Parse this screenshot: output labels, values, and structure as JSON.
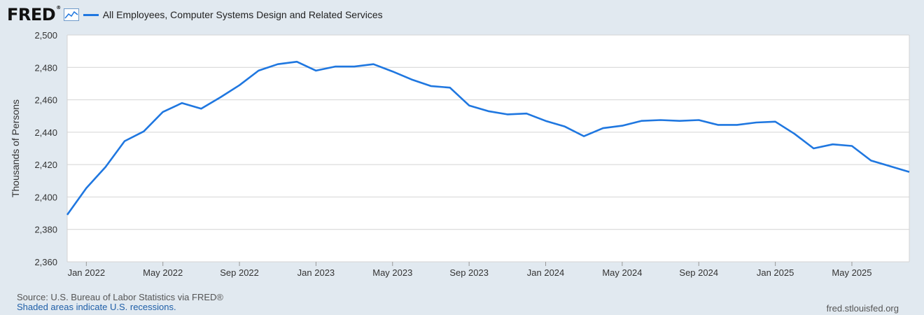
{
  "logo": {
    "text": "FRED",
    "reg": "®",
    "icon": "line-graph-icon"
  },
  "colors": {
    "series": "#1f77e0",
    "background": "#e1e9f0",
    "plot": "#ffffff",
    "grid": "#d4d4d4"
  },
  "footer": {
    "source": "Source: U.S. Bureau of Labor Statistics via FRED®",
    "shaded": "Shaded areas indicate U.S. recessions.",
    "site": "fred.stlouisfed.org"
  },
  "chart_data": {
    "type": "line",
    "title": "",
    "ylabel": "Thousands of Persons",
    "xlabel": "",
    "ylim": [
      2360,
      2500
    ],
    "yticks": [
      "2,360",
      "2,380",
      "2,400",
      "2,420",
      "2,440",
      "2,460",
      "2,480",
      "2,500"
    ],
    "ytick_values": [
      2360,
      2380,
      2400,
      2420,
      2440,
      2460,
      2480,
      2500
    ],
    "xticks": [
      "Jan 2022",
      "May 2022",
      "Sep 2022",
      "Jan 2023",
      "May 2023",
      "Sep 2023",
      "Jan 2024",
      "May 2024",
      "Sep 2024",
      "Jan 2025",
      "May 2025"
    ],
    "xtick_dates": [
      "2022-01",
      "2022-05",
      "2022-09",
      "2023-01",
      "2023-05",
      "2023-09",
      "2024-01",
      "2024-05",
      "2024-09",
      "2025-01",
      "2025-05"
    ],
    "x_range": [
      "2021-12",
      "2025-08"
    ],
    "grid": true,
    "legend": "top-left",
    "series": [
      {
        "name": "All Employees, Computer Systems Design and Related Services",
        "x": [
          "2021-12",
          "2022-01",
          "2022-02",
          "2022-03",
          "2022-04",
          "2022-05",
          "2022-06",
          "2022-07",
          "2022-08",
          "2022-09",
          "2022-10",
          "2022-11",
          "2022-12",
          "2023-01",
          "2023-02",
          "2023-03",
          "2023-04",
          "2023-05",
          "2023-06",
          "2023-07",
          "2023-08",
          "2023-09",
          "2023-10",
          "2023-11",
          "2023-12",
          "2024-01",
          "2024-02",
          "2024-03",
          "2024-04",
          "2024-05",
          "2024-06",
          "2024-07",
          "2024-08",
          "2024-09",
          "2024-10",
          "2024-11",
          "2024-12",
          "2025-01",
          "2025-02",
          "2025-03",
          "2025-04",
          "2025-05",
          "2025-06",
          "2025-07",
          "2025-08"
        ],
        "values": [
          2389,
          2405.5,
          2418.5,
          2434.5,
          2440.5,
          2452.5,
          2458,
          2454.5,
          2461.5,
          2469,
          2478,
          2482,
          2483.5,
          2478,
          2480.5,
          2480.5,
          2482,
          2477.5,
          2472.5,
          2468.5,
          2467.5,
          2456.5,
          2453,
          2451,
          2451.5,
          2447,
          2443.5,
          2437.5,
          2442.5,
          2444,
          2447,
          2447.5,
          2447,
          2447.5,
          2444.5,
          2444.5,
          2446,
          2446.5,
          2439,
          2430,
          2432.5,
          2431.5,
          2422.5,
          2419,
          2415.5
        ]
      }
    ]
  }
}
